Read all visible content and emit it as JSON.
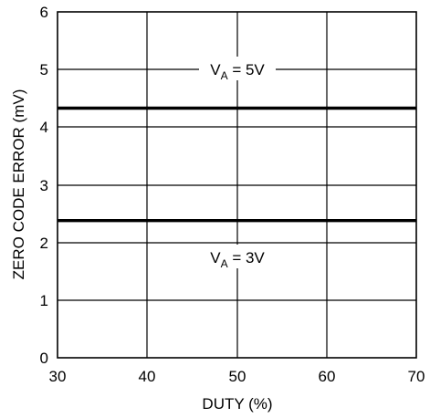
{
  "chart_data": {
    "type": "line",
    "title": "",
    "xlabel": "DUTY (%)",
    "ylabel": "ZERO CODE ERROR (mV)",
    "xlim": [
      30,
      70
    ],
    "ylim": [
      0,
      6
    ],
    "xticks": [
      "30",
      "40",
      "50",
      "60",
      "70"
    ],
    "yticks": [
      "0",
      "1",
      "2",
      "3",
      "4",
      "5",
      "6"
    ],
    "grid": true,
    "legend": "none",
    "series": [
      {
        "x": [
          30,
          70
        ],
        "values": [
          4.33,
          4.33
        ],
        "color": "#000000"
      },
      {
        "x": [
          30,
          70
        ],
        "values": [
          2.38,
          2.38
        ],
        "color": "#000000"
      }
    ],
    "annotations": [
      {
        "main": "V",
        "sub": "A",
        "rest": " = 5V",
        "x": 50,
        "y": 4.98
      },
      {
        "main": "V",
        "sub": "A",
        "rest": " = 3V",
        "x": 50,
        "y": 1.73
      }
    ]
  }
}
